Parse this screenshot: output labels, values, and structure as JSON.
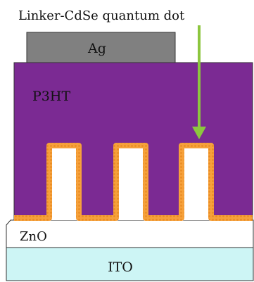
{
  "labels": {
    "linker": "Linker-CdSe quantum dot",
    "ag": "Ag",
    "p3ht": "P3HT",
    "zno": "ZnO",
    "ito": "ITO"
  },
  "colors": {
    "ag": "#808080",
    "p3ht": "#7b2a93",
    "quantum_dot": "#f6a13b",
    "arrow": "#8cc63e",
    "zno": "#ffffff",
    "ito": "#cdf5f5"
  },
  "icons": {
    "arrow": "down-arrow-icon"
  }
}
